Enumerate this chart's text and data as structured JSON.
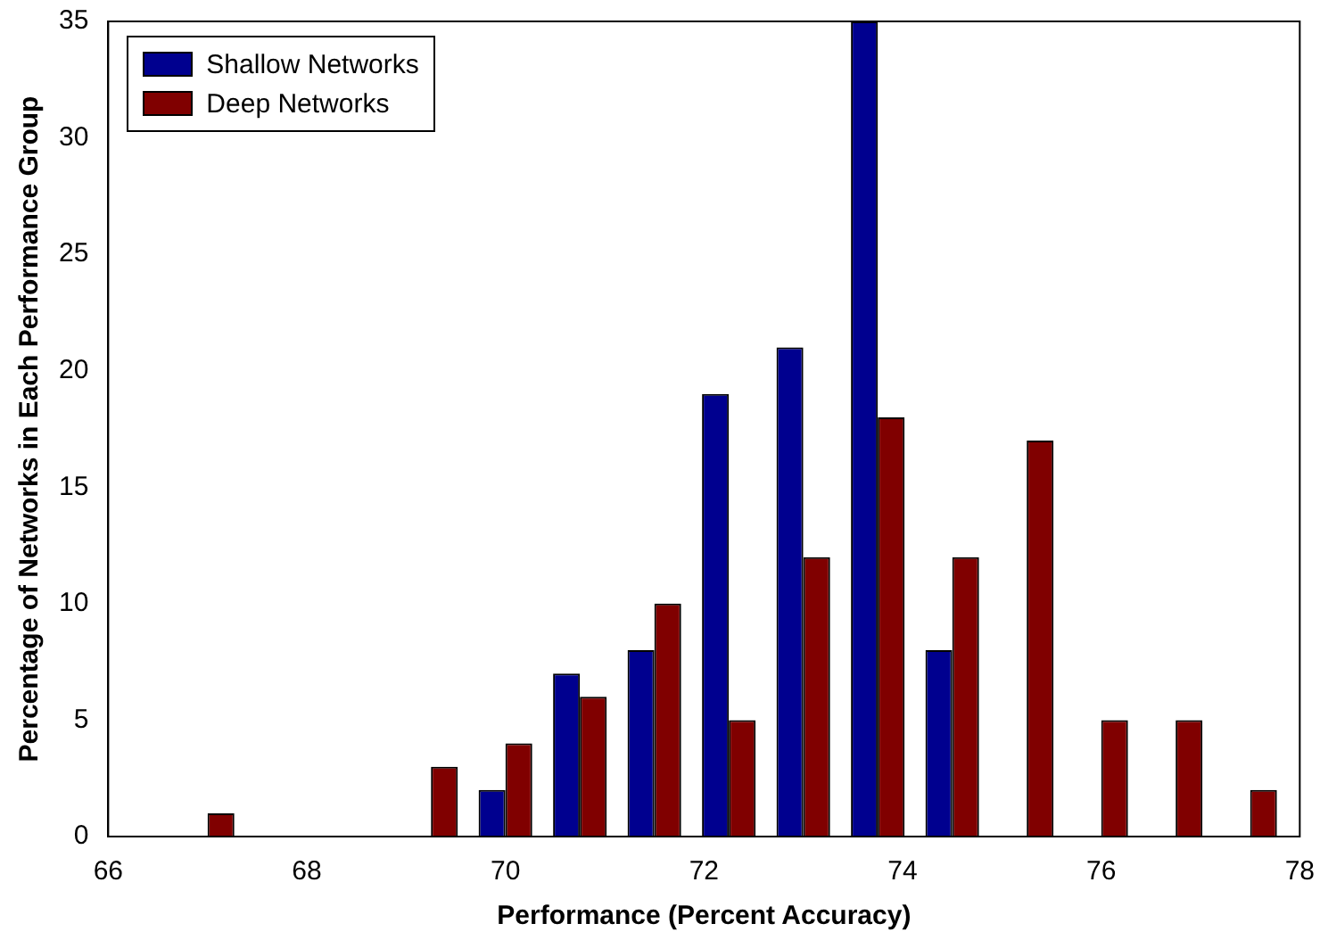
{
  "chart_data": {
    "type": "bar",
    "xlabel": "Performance (Percent Accuracy)",
    "ylabel": "Percentage of Networks in Each Performance Group",
    "x": [
      67,
      67.75,
      68.5,
      69.25,
      70,
      70.75,
      71.5,
      72.25,
      73,
      73.75,
      74.5,
      75.25,
      76,
      76.75,
      77.5
    ],
    "series": [
      {
        "name": "Shallow Networks",
        "color": "#00008f",
        "values": [
          0,
          0,
          0,
          0,
          2,
          7,
          8,
          19,
          21,
          35,
          8,
          0,
          0,
          0,
          0
        ]
      },
      {
        "name": "Deep Networks",
        "color": "#800000",
        "values": [
          1,
          0,
          0,
          3,
          4,
          6,
          10,
          5,
          12,
          18,
          12,
          17,
          5,
          5,
          2
        ]
      }
    ],
    "xlim": [
      66,
      78
    ],
    "xticks": [
      66,
      68,
      70,
      72,
      74,
      76,
      78
    ],
    "ylim": [
      0,
      35
    ],
    "yticks": [
      0,
      5,
      10,
      15,
      20,
      25,
      30,
      35
    ],
    "grid": false,
    "legend": "top left"
  }
}
